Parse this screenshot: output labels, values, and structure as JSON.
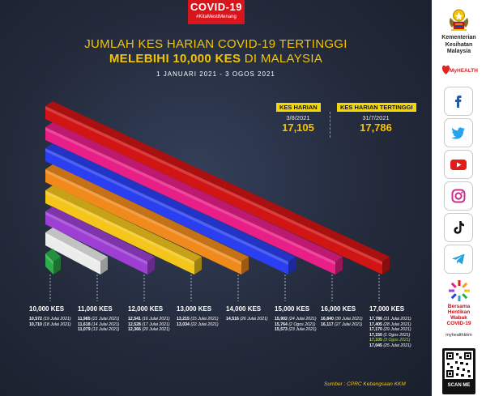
{
  "header": {
    "badge_title": "COVID-19",
    "badge_tag": "#KitaMestiMenang",
    "title_line1": "JUMLAH KES HARIAN COVID-19 TERTINGGI",
    "title_line2_bold": "MELEBIHI 10,000 KES",
    "title_line2_rest": " DI MALAYSIA",
    "date_range": "1 JANUARI 2021 - 3 OGOS 2021"
  },
  "kpi": {
    "harian": {
      "label": "KES HARIAN",
      "date": "3/8/2021",
      "value": "17,105"
    },
    "tertinggi": {
      "label": "KES HARIAN TERTINGGI",
      "date": "31/7/2021",
      "value": "17,786"
    }
  },
  "chart_data": {
    "type": "bar",
    "title": "JUMLAH KES HARIAN COVID-19 TERTINGGI MELEBIHI 10,000 KES DI MALAYSIA",
    "subtitle": "1 JANUARI 2021 - 3 OGOS 2021",
    "categories": [
      "10,000 KES",
      "11,000 KES",
      "12,000 KES",
      "13,000 KES",
      "14,000 KES",
      "15,000 KES",
      "16,000 KES",
      "17,000 KES"
    ],
    "thresholds": [
      10000,
      11000,
      12000,
      13000,
      14000,
      15000,
      16000,
      17000
    ],
    "colors": [
      "#2cae4a",
      "#ececec",
      "#9c3fd2",
      "#f4c61b",
      "#f08a1d",
      "#2a3ff0",
      "#e81f86",
      "#d11414"
    ],
    "entries": [
      [
        {
          "value": "10,572",
          "date": "19 Julai 2021"
        },
        {
          "value": "10,710",
          "date": "18 Julai 2021"
        }
      ],
      [
        {
          "value": "11,985",
          "date": "21 Julai 2021"
        },
        {
          "value": "11,618",
          "date": "14 Julai 2021"
        },
        {
          "value": "11,079",
          "date": "13 Julai 2021"
        }
      ],
      [
        {
          "value": "12,541",
          "date": "16 Julai 2021"
        },
        {
          "value": "12,528",
          "date": "17 Julai 2021"
        },
        {
          "value": "12,366",
          "date": "20 Julai 2021"
        }
      ],
      [
        {
          "value": "13,215",
          "date": "15 Julai 2021"
        },
        {
          "value": "13,034",
          "date": "22 Julai 2021"
        }
      ],
      [
        {
          "value": "14,516",
          "date": "26 Julai 2021"
        }
      ],
      [
        {
          "value": "15,902",
          "date": "24 Julai 2021"
        },
        {
          "value": "15,764",
          "date": "2 Ogos 2021"
        },
        {
          "value": "15,573",
          "date": "23 Julai 2021"
        }
      ],
      [
        {
          "value": "16,840",
          "date": "30 Julai 2021"
        },
        {
          "value": "16,117",
          "date": "27 Julai 2021"
        }
      ],
      [
        {
          "value": "17,786",
          "date": "31 Julai 2021"
        },
        {
          "value": "17,405",
          "date": "28 Julai 2021"
        },
        {
          "value": "17,170",
          "date": "29 Julai 2021"
        },
        {
          "value": "17,150",
          "date": "1 Ogos 2021"
        },
        {
          "value": "17,105",
          "date": "3 Ogos 2021",
          "highlight": true
        },
        {
          "value": "17,045",
          "date": "25 Julai 2021"
        }
      ]
    ]
  },
  "source": "Sumber : CPRC Kebangsaan KKM",
  "sidebar": {
    "ministry_line1": "Kementerian",
    "ministry_line2": "Kesihatan",
    "ministry_line3": "Malaysia",
    "myhealth": "MyHEALTH",
    "campaign_l1": "Bersama",
    "campaign_l2": "Hentikan",
    "campaign_l3": "Wabak",
    "campaign_l4": "COVID-19",
    "website": "myhealthkkm",
    "scan_label": "SCAN ME",
    "social": [
      "facebook-icon",
      "twitter-icon",
      "youtube-icon",
      "instagram-icon",
      "tiktok-icon",
      "telegram-icon"
    ],
    "social_colors": [
      "#2b58a6",
      "#2aa3ef",
      "#e21b1b",
      "#c72f8b",
      "#111111",
      "#2aa0da"
    ]
  }
}
